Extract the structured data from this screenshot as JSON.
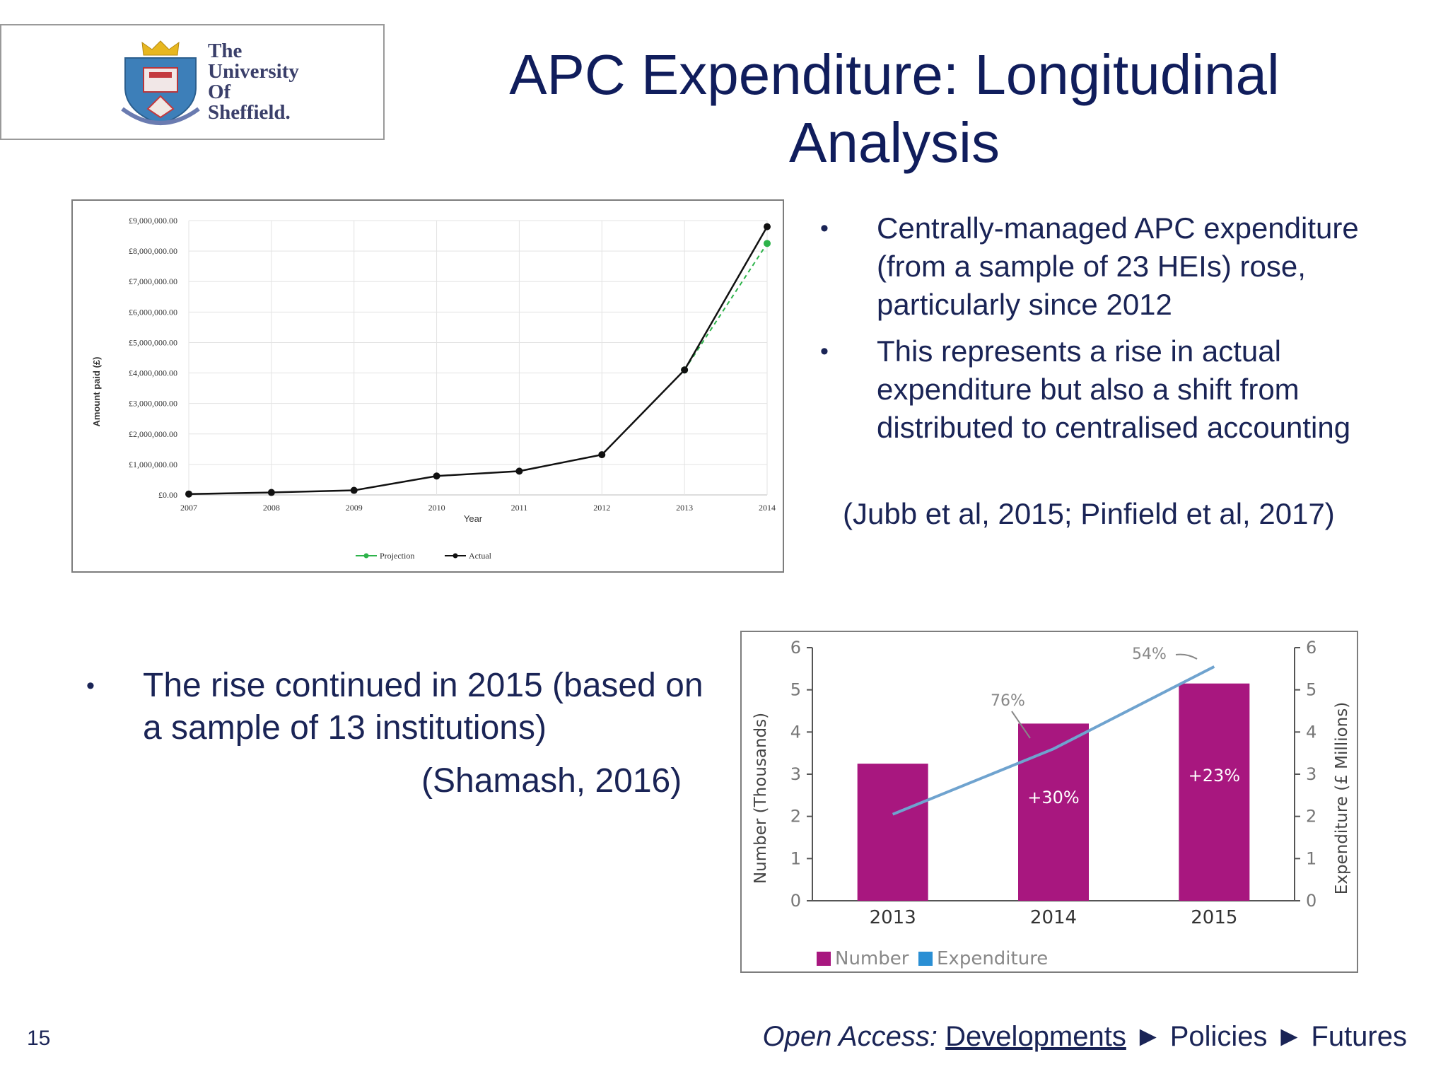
{
  "logo": {
    "lines": [
      "The",
      "University",
      "Of",
      "Sheffield."
    ]
  },
  "title": {
    "line1": "APC Expenditure: Longitudinal",
    "line2": "Analysis"
  },
  "bullets_right": [
    "Centrally-managed APC expenditure (from a sample of 23 HEIs) rose, particularly since 2012",
    "This represents a rise in actual expenditure but also a shift from distributed to centralised accounting"
  ],
  "citation_right": "(Jubb et al, 2015; Pinfield et al, 2017)",
  "bullets_left": [
    "The rise continued in 2015 (based on a sample of 13 institutions)"
  ],
  "citation_left": "(Shamash, 2016)",
  "page_number": "15",
  "footer": {
    "lead": "Open Access:",
    "items": [
      "Developments",
      "Policies",
      "Futures"
    ],
    "separator": "►"
  },
  "colors": {
    "text": "#1a2456",
    "projection": "#2db34a",
    "actual": "#111111",
    "bar": "#a8177f",
    "expenditure_line": "#6fa3cf"
  },
  "chart_data": [
    {
      "type": "line",
      "xlabel": "Year",
      "ylabel": "Amount paid (£)",
      "x": [
        2007,
        2008,
        2009,
        2010,
        2011,
        2012,
        2013,
        2014
      ],
      "x_tick_labels": [
        "2007",
        "2008",
        "2009",
        "2010",
        "2011",
        "2012",
        "2013",
        "2014"
      ],
      "y_tick_labels": [
        "£0.00",
        "£1,000,000.00",
        "£2,000,000.00",
        "£3,000,000.00",
        "£4,000,000.00",
        "£5,000,000.00",
        "£6,000,000.00",
        "£7,000,000.00",
        "£8,000,000.00",
        "£9,000,000.00"
      ],
      "ylim": [
        0,
        9000000
      ],
      "grid": true,
      "legend": "bottom",
      "series": [
        {
          "name": "Projection",
          "x": [
            2013,
            2014
          ],
          "values": [
            4100000,
            8250000
          ],
          "style": "dashed"
        },
        {
          "name": "Actual",
          "x": [
            2007,
            2008,
            2009,
            2010,
            2011,
            2012,
            2013,
            2014
          ],
          "values": [
            30000,
            80000,
            150000,
            620000,
            780000,
            1320000,
            4100000,
            8800000
          ]
        }
      ]
    },
    {
      "type": "bar",
      "categories": [
        "2013",
        "2014",
        "2015"
      ],
      "ylabel": "Number (Thousands)",
      "y2label": "Expenditure (£ Millions)",
      "y_ticks": [
        "0",
        "1",
        "2",
        "3",
        "4",
        "5",
        "6"
      ],
      "ylim": [
        0,
        6
      ],
      "legend": "bottom-left",
      "series": [
        {
          "name": "Number",
          "type": "bar",
          "values": [
            3.25,
            4.2,
            5.15
          ],
          "labels": [
            "",
            "+30%",
            "+23%"
          ]
        },
        {
          "name": "Expenditure",
          "type": "line",
          "values": [
            2.05,
            3.6,
            5.55
          ]
        }
      ],
      "annotations": [
        "76%",
        "54%"
      ]
    }
  ]
}
